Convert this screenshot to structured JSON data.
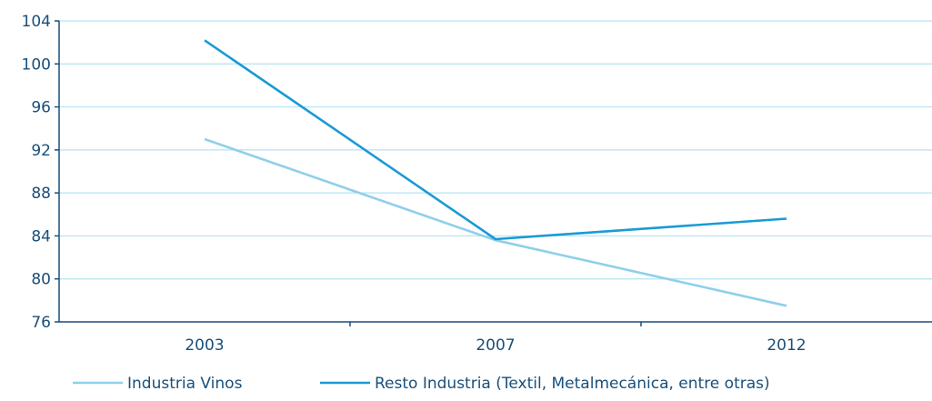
{
  "chart_data": {
    "type": "line",
    "categories": [
      "2003",
      "2007",
      "2012"
    ],
    "series": [
      {
        "name": "Industria Vinos",
        "values": [
          93,
          83.6,
          77.5
        ],
        "color": "#8fcfea"
      },
      {
        "name": "Resto Industria (Textil, Metalmecánica, entre otras)",
        "values": [
          102.2,
          83.7,
          85.6
        ],
        "color": "#1a9ad6"
      }
    ],
    "yticks": [
      76,
      80,
      84,
      88,
      92,
      96,
      100,
      104
    ],
    "ylim": [
      76,
      104
    ],
    "grid": true,
    "grid_color": "#b3e3f4",
    "axis_color": "#1a4f7a",
    "legend_position": "bottom-left"
  }
}
